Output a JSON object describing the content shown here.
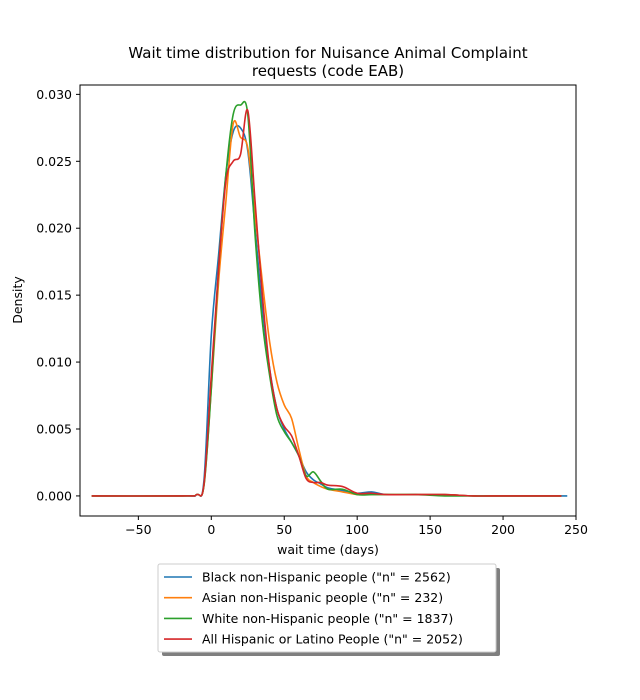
{
  "chart_data": {
    "type": "line",
    "title_line1": "Wait time distribution  for Nuisance Animal Complaint",
    "title_line2": "requests (code EAB)",
    "xlabel": "wait time (days)",
    "ylabel": "Density",
    "xlim": [
      -90,
      250
    ],
    "ylim": [
      -0.0015,
      0.0307
    ],
    "xticks": [
      -50,
      0,
      50,
      100,
      150,
      200,
      250
    ],
    "xtick_labels": [
      "−50",
      "0",
      "50",
      "100",
      "150",
      "200",
      "250"
    ],
    "yticks": [
      0.0,
      0.005,
      0.01,
      0.015,
      0.02,
      0.025,
      0.03
    ],
    "ytick_labels": [
      "0.000",
      "0.005",
      "0.010",
      "0.015",
      "0.020",
      "0.025",
      "0.030"
    ],
    "grid": false,
    "legend_position": "below-center",
    "series": [
      {
        "name": "Black non-Hispanic people (\"n\" = 2562)",
        "color": "#1f77b4",
        "x": [
          -82,
          -20,
          -10,
          -5,
          0,
          5,
          10,
          15,
          20,
          25,
          30,
          35,
          40,
          45,
          50,
          55,
          60,
          65,
          70,
          75,
          80,
          90,
          100,
          110,
          120,
          140,
          160,
          180,
          200,
          244
        ],
        "y": [
          0.0,
          0.0,
          0.0001,
          0.0012,
          0.012,
          0.018,
          0.024,
          0.0272,
          0.0275,
          0.0258,
          0.02,
          0.014,
          0.0095,
          0.0065,
          0.005,
          0.004,
          0.003,
          0.0018,
          0.0012,
          0.0009,
          0.0006,
          0.0004,
          0.0002,
          0.0003,
          0.0001,
          0.0001,
          0.0001,
          0.0,
          0.0,
          0.0
        ]
      },
      {
        "name": "Asian non-Hispanic people (\"n\" = 232)",
        "color": "#ff7f0e",
        "x": [
          -82,
          -20,
          -10,
          -5,
          0,
          5,
          10,
          15,
          20,
          25,
          30,
          35,
          40,
          45,
          50,
          55,
          60,
          65,
          70,
          75,
          80,
          90,
          100,
          110,
          120,
          140,
          160,
          180,
          200,
          240
        ],
        "y": [
          0.0,
          0.0,
          0.0001,
          0.0008,
          0.008,
          0.016,
          0.022,
          0.0278,
          0.0268,
          0.026,
          0.021,
          0.016,
          0.0115,
          0.0085,
          0.0068,
          0.0058,
          0.0035,
          0.0015,
          0.001,
          0.0007,
          0.0005,
          0.0003,
          0.0001,
          0.0001,
          0.0001,
          0.0001,
          0.0001,
          0.0,
          0.0,
          0.0
        ]
      },
      {
        "name": "White non-Hispanic people (\"n\" = 1837)",
        "color": "#2ca02c",
        "x": [
          -82,
          -20,
          -10,
          -5,
          0,
          5,
          10,
          15,
          20,
          25,
          30,
          35,
          40,
          45,
          50,
          55,
          60,
          65,
          70,
          75,
          80,
          90,
          100,
          110,
          120,
          140,
          160,
          180,
          200,
          240
        ],
        "y": [
          0.0,
          0.0,
          0.0001,
          0.0008,
          0.008,
          0.017,
          0.024,
          0.0285,
          0.0292,
          0.0285,
          0.0195,
          0.013,
          0.009,
          0.006,
          0.0048,
          0.004,
          0.003,
          0.0015,
          0.0018,
          0.0011,
          0.0005,
          0.0005,
          0.0001,
          0.0001,
          0.0001,
          0.0001,
          0.0,
          0.0,
          0.0,
          0.0
        ]
      },
      {
        "name": "All Hispanic or Latino People (\"n\" = 2052)",
        "color": "#d62728",
        "x": [
          -82,
          -20,
          -10,
          -5,
          0,
          5,
          10,
          15,
          20,
          25,
          30,
          35,
          40,
          45,
          50,
          55,
          60,
          65,
          70,
          75,
          80,
          90,
          100,
          110,
          120,
          140,
          160,
          180,
          200,
          240
        ],
        "y": [
          0.0,
          0.0,
          0.0001,
          0.0009,
          0.009,
          0.017,
          0.0235,
          0.025,
          0.0255,
          0.0288,
          0.022,
          0.015,
          0.0095,
          0.0065,
          0.0052,
          0.0045,
          0.003,
          0.0013,
          0.001,
          0.001,
          0.0008,
          0.0007,
          0.0002,
          0.0002,
          0.0001,
          0.0001,
          0.0001,
          0.0,
          0.0,
          0.0
        ]
      }
    ]
  }
}
